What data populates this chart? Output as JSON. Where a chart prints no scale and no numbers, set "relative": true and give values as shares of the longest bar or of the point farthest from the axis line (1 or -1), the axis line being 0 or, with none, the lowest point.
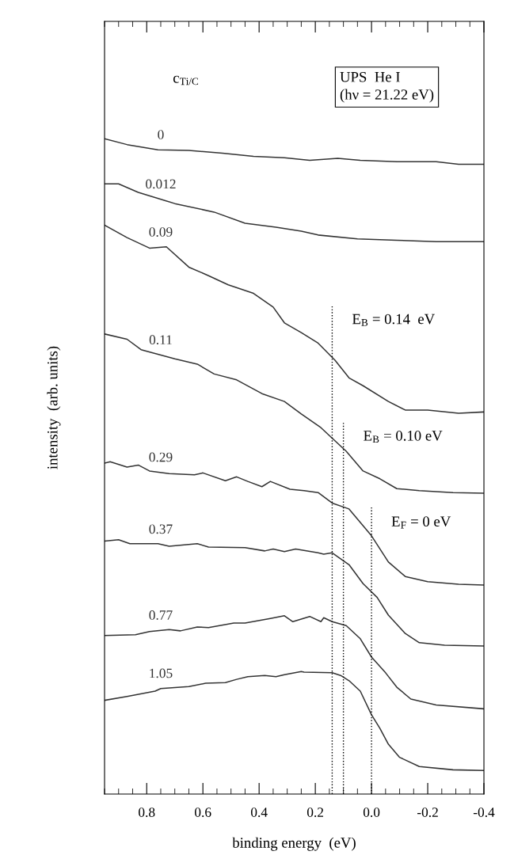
{
  "chart_data": {
    "type": "line",
    "relative": true,
    "xlabel": "binding energy  (eV)",
    "ylabel": "intensity  (arb. units)",
    "xlim": [
      0.95,
      -0.4
    ],
    "xticks": [
      0.8,
      0.6,
      0.4,
      0.2,
      {
        "value": 0,
        "label": "0.0"
      },
      -0.2,
      -0.4
    ],
    "line_style": "solid",
    "marker": "none",
    "annotations": [
      "c$_{Ti/C}$",
      "UPS  He I\n(hν = 21.22 eV)"
    ],
    "ref_lines": [
      {
        "axis": "x",
        "value": 0.14,
        "label": "E$_{B}$ = 0.14  eV",
        "line_style": "dotted",
        "color": "#000000"
      },
      {
        "axis": "x",
        "value": 0.1,
        "label": "E$_{B}$ = 0.10 eV",
        "line_style": "dotted",
        "color": "#000000"
      },
      {
        "axis": "x",
        "value": 0,
        "label": "E$_{F}$ = 0 eV",
        "line_style": "dotted",
        "color": "#000000"
      }
    ],
    "series": [
      {
        "name": "0",
        "color": "#333333",
        "x": [
          0.95,
          0.87,
          0.76,
          0.65,
          0.53,
          0.42,
          0.31,
          0.22,
          0.12,
          0.04,
          -0.09,
          -0.23,
          -0.31,
          -0.4
        ],
        "values": [
          1.0,
          0.991,
          0.983,
          0.982,
          0.978,
          0.973,
          0.971,
          0.967,
          0.97,
          0.967,
          0.965,
          0.965,
          0.961,
          0.961
        ]
      },
      {
        "name": "0.012",
        "color": "#333333",
        "x": [
          0.95,
          0.9,
          0.83,
          0.7,
          0.56,
          0.45,
          0.34,
          0.25,
          0.19,
          0.05,
          -0.09,
          -0.23,
          -0.4
        ],
        "values": [
          0.931,
          0.931,
          0.918,
          0.901,
          0.888,
          0.871,
          0.865,
          0.859,
          0.853,
          0.847,
          0.845,
          0.843,
          0.843
        ]
      },
      {
        "name": "0.09",
        "color": "#333333",
        "x": [
          0.95,
          0.87,
          0.79,
          0.73,
          0.65,
          0.58,
          0.51,
          0.42,
          0.35,
          0.31,
          0.25,
          0.19,
          0.13,
          0.08,
          0.03,
          -0.06,
          -0.12,
          -0.2,
          -0.31,
          -0.4
        ],
        "values": [
          0.868,
          0.849,
          0.833,
          0.835,
          0.804,
          0.791,
          0.777,
          0.764,
          0.743,
          0.719,
          0.704,
          0.688,
          0.662,
          0.635,
          0.623,
          0.599,
          0.586,
          0.586,
          0.581,
          0.583
        ]
      },
      {
        "name": "0.11",
        "color": "#333333",
        "x": [
          0.95,
          0.87,
          0.82,
          0.7,
          0.62,
          0.56,
          0.48,
          0.39,
          0.31,
          0.25,
          0.18,
          0.14,
          0.09,
          0.03,
          -0.03,
          -0.09,
          -0.17,
          -0.29,
          -0.4
        ],
        "values": [
          0.702,
          0.694,
          0.678,
          0.664,
          0.656,
          0.641,
          0.632,
          0.611,
          0.599,
          0.58,
          0.559,
          0.543,
          0.523,
          0.493,
          0.481,
          0.466,
          0.463,
          0.46,
          0.459
        ]
      },
      {
        "name": "0.29",
        "color": "#333333",
        "x": [
          0.95,
          0.93,
          0.87,
          0.83,
          0.79,
          0.72,
          0.63,
          0.6,
          0.52,
          0.48,
          0.44,
          0.39,
          0.36,
          0.29,
          0.24,
          0.19,
          0.14,
          0.08,
          0.0,
          -0.06,
          -0.12,
          -0.2,
          -0.31,
          -0.4
        ],
        "values": [
          0.505,
          0.507,
          0.499,
          0.502,
          0.493,
          0.489,
          0.487,
          0.49,
          0.478,
          0.484,
          0.477,
          0.469,
          0.477,
          0.465,
          0.463,
          0.46,
          0.444,
          0.435,
          0.394,
          0.354,
          0.332,
          0.324,
          0.32,
          0.319
        ]
      },
      {
        "name": "0.37",
        "color": "#333333",
        "x": [
          0.95,
          0.9,
          0.86,
          0.76,
          0.72,
          0.62,
          0.58,
          0.45,
          0.38,
          0.35,
          0.31,
          0.27,
          0.19,
          0.17,
          0.14,
          0.08,
          0.03,
          -0.02,
          -0.06,
          -0.12,
          -0.17,
          -0.26,
          -0.4
        ],
        "values": [
          0.386,
          0.388,
          0.382,
          0.382,
          0.378,
          0.382,
          0.377,
          0.376,
          0.371,
          0.374,
          0.37,
          0.374,
          0.368,
          0.366,
          0.368,
          0.35,
          0.321,
          0.3,
          0.273,
          0.245,
          0.231,
          0.227,
          0.226
        ]
      },
      {
        "name": "0.77",
        "color": "#333333",
        "x": [
          0.95,
          0.84,
          0.79,
          0.72,
          0.68,
          0.62,
          0.58,
          0.49,
          0.45,
          0.36,
          0.31,
          0.28,
          0.22,
          0.18,
          0.17,
          0.14,
          0.09,
          0.04,
          0.0,
          -0.05,
          -0.09,
          -0.14,
          -0.23,
          -0.4
        ],
        "values": [
          0.242,
          0.243,
          0.248,
          0.251,
          0.249,
          0.255,
          0.254,
          0.261,
          0.261,
          0.268,
          0.272,
          0.263,
          0.271,
          0.263,
          0.269,
          0.263,
          0.257,
          0.237,
          0.209,
          0.185,
          0.163,
          0.145,
          0.136,
          0.13
        ]
      },
      {
        "name": "1.05",
        "color": "#333333",
        "x": [
          0.95,
          0.87,
          0.77,
          0.75,
          0.65,
          0.59,
          0.52,
          0.48,
          0.44,
          0.38,
          0.34,
          0.31,
          0.25,
          0.24,
          0.14,
          0.11,
          0.08,
          0.04,
          0.0,
          -0.03,
          -0.06,
          -0.1,
          -0.17,
          -0.29,
          -0.4
        ],
        "values": [
          0.143,
          0.149,
          0.157,
          0.161,
          0.164,
          0.169,
          0.17,
          0.175,
          0.179,
          0.181,
          0.179,
          0.182,
          0.187,
          0.186,
          0.185,
          0.181,
          0.173,
          0.157,
          0.121,
          0.1,
          0.076,
          0.056,
          0.042,
          0.037,
          0.036
        ]
      }
    ]
  }
}
